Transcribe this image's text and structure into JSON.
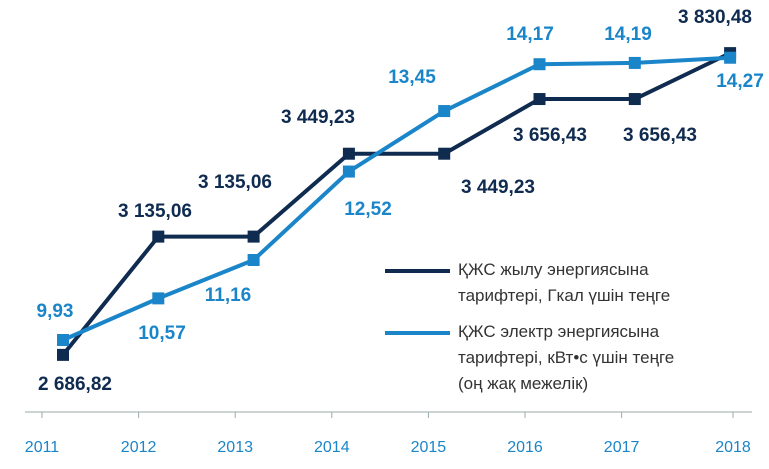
{
  "chart_data": {
    "type": "line",
    "categories": [
      "2011",
      "2012",
      "2013",
      "2014",
      "2015",
      "2016",
      "2017",
      "2018"
    ],
    "series": [
      {
        "name": "ҚЖС жылу энергиясына\nтарифтері, Гкал үшін теңге",
        "color": "#0f2b4f",
        "values": [
          2686.82,
          3135.06,
          3135.06,
          3449.23,
          3449.23,
          3656.43,
          3656.43,
          3830.48
        ],
        "value_labels": [
          "2 686,82",
          "3 135,06",
          "3 135,06",
          "3 449,23",
          "3 449,23",
          "3 656,43",
          "3 656,43",
          "3 830,48"
        ]
      },
      {
        "name": "ҚЖС электр энергиясына\nтарифтері, кВт•с үшін теңге\n(оң жақ межелік)",
        "color": "#1a85c8",
        "axis": "y2",
        "values": [
          9.93,
          10.57,
          11.16,
          12.52,
          13.45,
          14.17,
          14.19,
          14.27
        ],
        "value_labels": [
          "9,93",
          "10,57",
          "11,16",
          "12,52",
          "13,45",
          "14,17",
          "14,19",
          "14,27"
        ]
      }
    ],
    "ylim": [
      2440,
      3956
    ],
    "y2lim": [
      8.7,
      14.85
    ]
  }
}
